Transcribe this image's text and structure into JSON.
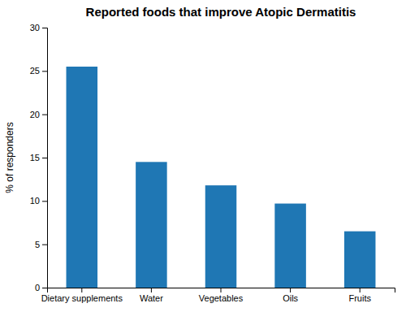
{
  "chart_data": {
    "type": "bar",
    "title": "Reported foods that improve Atopic Dermatitis",
    "categories": [
      "Dietary supplements",
      "Water",
      "Vegetables",
      "Oils",
      "Fruits"
    ],
    "values": [
      25.5,
      14.5,
      11.8,
      9.7,
      6.5
    ],
    "ylabel": "% of responders",
    "ylim": [
      0,
      30
    ],
    "yticks": [
      0,
      5,
      10,
      15,
      20,
      25,
      30
    ],
    "grid": false
  }
}
